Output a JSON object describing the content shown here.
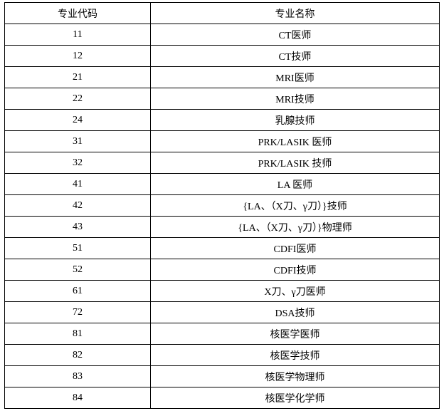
{
  "table": {
    "headers": [
      "专业代码",
      "专业名称"
    ],
    "rows": [
      [
        "11",
        "CT医师"
      ],
      [
        "12",
        "CT技师"
      ],
      [
        "21",
        "MRI医师"
      ],
      [
        "22",
        "MRI技师"
      ],
      [
        "24",
        "乳腺技师"
      ],
      [
        "31",
        "PRK/LASIK 医师"
      ],
      [
        "32",
        "PRK/LASIK 技师"
      ],
      [
        "41",
        "LA 医师"
      ],
      [
        "42",
        "{LA、（X刀、γ刀）}技师"
      ],
      [
        "43",
        "{LA、（X刀、γ刀）}物理师"
      ],
      [
        "51",
        "CDFI医师"
      ],
      [
        "52",
        "CDFI技师"
      ],
      [
        "61",
        "X刀、γ刀医师"
      ],
      [
        "72",
        "DSA技师"
      ],
      [
        "81",
        "核医学医师"
      ],
      [
        "82",
        "核医学技师"
      ],
      [
        "83",
        "核医学物理师"
      ],
      [
        "84",
        "核医学化学师"
      ]
    ]
  }
}
